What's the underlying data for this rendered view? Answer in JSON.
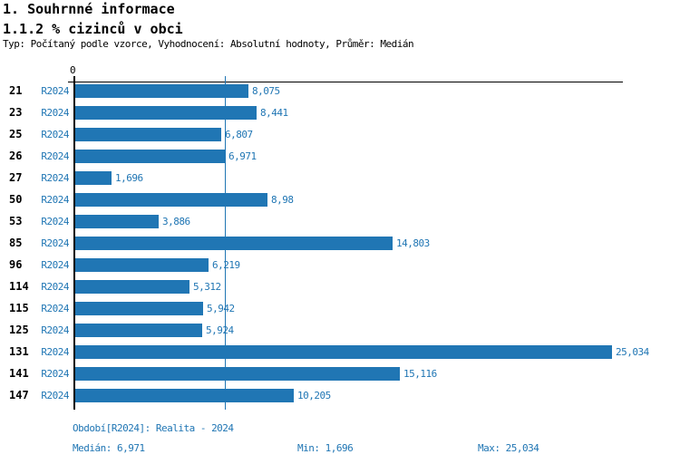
{
  "header": {
    "section_title": "1. Souhrnné informace",
    "chart_title": "1.1.2 % cizinců v obci",
    "subtitle": "Typ: Počítaný podle vzorce, Vyhodnocení: Absolutní hodnoty, Průměr: Medián"
  },
  "chart_data": {
    "type": "bar",
    "orientation": "horizontal",
    "title": "1.1.2 % cizinců v obci",
    "series_label": "R2024",
    "categories": [
      "21",
      "23",
      "25",
      "26",
      "27",
      "50",
      "53",
      "85",
      "96",
      "114",
      "115",
      "125",
      "131",
      "141",
      "147"
    ],
    "values": [
      8.075,
      8.441,
      6.807,
      6.971,
      1.696,
      8.98,
      3.886,
      14.803,
      6.219,
      5.312,
      5.942,
      5.924,
      25.034,
      15.116,
      10.205
    ],
    "value_labels": [
      "8,075",
      "8,441",
      "6,807",
      "6,971",
      "1,696",
      "8,98",
      "3,886",
      "14,803",
      "6,219",
      "5,312",
      "5,942",
      "5,924",
      "25,034",
      "15,116",
      "10,205"
    ],
    "axis": {
      "origin_label": "0",
      "xmin": 0,
      "xmax": 25.4
    },
    "median_line": 6.971,
    "bar_color": "#2076b4",
    "text_color": "#2076b4",
    "legend_position": "none",
    "grid": false
  },
  "footer": {
    "period": "Období[R2024]: Realita - 2024",
    "median": "Medián: 6,971",
    "min": "Min: 1,696",
    "max": "Max: 25,034"
  }
}
